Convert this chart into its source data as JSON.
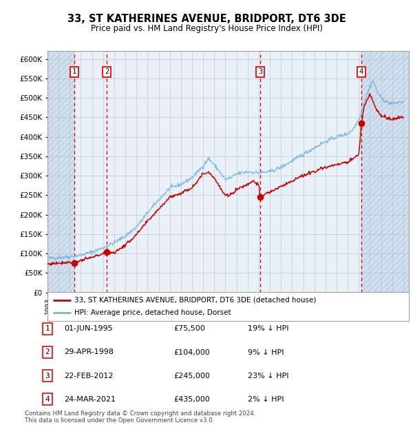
{
  "title": "33, ST KATHERINES AVENUE, BRIDPORT, DT6 3DE",
  "subtitle": "Price paid vs. HM Land Registry's House Price Index (HPI)",
  "hpi_label": "HPI: Average price, detached house, Dorset",
  "property_label": "33, ST KATHERINES AVENUE, BRIDPORT, DT6 3DE (detached house)",
  "xlim_start": 1993.0,
  "xlim_end": 2025.5,
  "ylim_min": 0,
  "ylim_max": 620000,
  "yticks": [
    0,
    50000,
    100000,
    150000,
    200000,
    250000,
    300000,
    350000,
    400000,
    450000,
    500000,
    550000,
    600000
  ],
  "ytick_labels": [
    "£0",
    "£50K",
    "£100K",
    "£150K",
    "£200K",
    "£250K",
    "£300K",
    "£350K",
    "£400K",
    "£450K",
    "£500K",
    "£550K",
    "£600K"
  ],
  "sale_dates": [
    1995.42,
    1998.33,
    2012.13,
    2021.23
  ],
  "sale_prices": [
    75500,
    104000,
    245000,
    435000
  ],
  "sale_labels": [
    "1",
    "2",
    "3",
    "4"
  ],
  "sale_info": [
    {
      "label": "1",
      "date": "01-JUN-1995",
      "price": "£75,500",
      "hpi": "19% ↓ HPI"
    },
    {
      "label": "2",
      "date": "29-APR-1998",
      "price": "£104,000",
      "hpi": "9% ↓ HPI"
    },
    {
      "label": "3",
      "date": "22-FEB-2012",
      "price": "£245,000",
      "hpi": "23% ↓ HPI"
    },
    {
      "label": "4",
      "date": "24-MAR-2021",
      "price": "£435,000",
      "hpi": "2% ↓ HPI"
    }
  ],
  "hpi_color": "#7ab4d8",
  "price_color": "#cc0000",
  "dashed_line_color": "#dd0000",
  "grid_color": "#bbbbbb",
  "plot_bg": "#e8f0f8",
  "hatch_bg": "#d0e0f0",
  "footer_text": "Contains HM Land Registry data © Crown copyright and database right 2024.\nThis data is licensed under the Open Government Licence v3.0."
}
